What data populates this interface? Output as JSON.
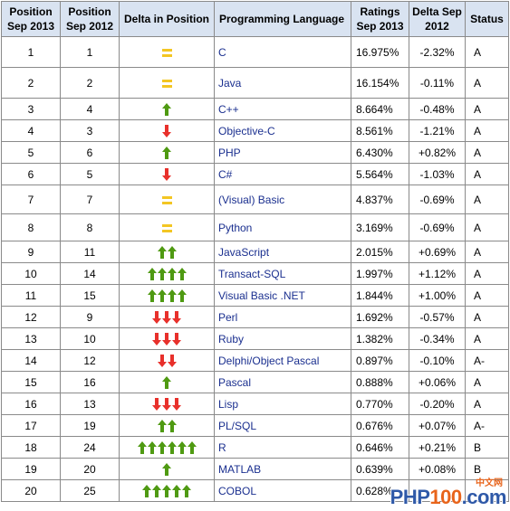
{
  "headers": {
    "pos2013": "Position Sep 2013",
    "pos2012": "Position Sep 2012",
    "delta_pos": "Delta in Position",
    "language": "Programming Language",
    "ratings": "Ratings Sep 2013",
    "delta": "Delta Sep 2012",
    "status": "Status"
  },
  "colors": {
    "up": "#4f9a12",
    "down": "#e8302b",
    "equal": "#f3c623",
    "link": "#1a2f8f",
    "header_bg": "#d9e3f1"
  },
  "rows": [
    {
      "p13": "1",
      "p12": "1",
      "trend": "equal",
      "count": 1,
      "lang": "C",
      "rating": "16.975%",
      "delta": "-2.32%",
      "status": "A"
    },
    {
      "p13": "2",
      "p12": "2",
      "trend": "equal",
      "count": 1,
      "lang": "Java",
      "rating": "16.154%",
      "delta": "-0.11%",
      "status": "A"
    },
    {
      "p13": "3",
      "p12": "4",
      "trend": "up",
      "count": 1,
      "lang": "C++",
      "rating": "8.664%",
      "delta": "-0.48%",
      "status": "A"
    },
    {
      "p13": "4",
      "p12": "3",
      "trend": "down",
      "count": 1,
      "lang": "Objective-C",
      "rating": "8.561%",
      "delta": "-1.21%",
      "status": "A"
    },
    {
      "p13": "5",
      "p12": "6",
      "trend": "up",
      "count": 1,
      "lang": "PHP",
      "rating": "6.430%",
      "delta": "+0.82%",
      "status": "A"
    },
    {
      "p13": "6",
      "p12": "5",
      "trend": "down",
      "count": 1,
      "lang": "C#",
      "rating": "5.564%",
      "delta": "-1.03%",
      "status": "A"
    },
    {
      "p13": "7",
      "p12": "7",
      "trend": "equal",
      "count": 1,
      "lang": "(Visual) Basic",
      "rating": "4.837%",
      "delta": "-0.69%",
      "status": "A"
    },
    {
      "p13": "8",
      "p12": "8",
      "trend": "equal",
      "count": 1,
      "lang": "Python",
      "rating": "3.169%",
      "delta": "-0.69%",
      "status": "A"
    },
    {
      "p13": "9",
      "p12": "11",
      "trend": "up",
      "count": 2,
      "lang": "JavaScript",
      "rating": "2.015%",
      "delta": "+0.69%",
      "status": "A"
    },
    {
      "p13": "10",
      "p12": "14",
      "trend": "up",
      "count": 4,
      "lang": "Transact-SQL",
      "rating": "1.997%",
      "delta": "+1.12%",
      "status": "A"
    },
    {
      "p13": "11",
      "p12": "15",
      "trend": "up",
      "count": 4,
      "lang": "Visual Basic .NET",
      "rating": "1.844%",
      "delta": "+1.00%",
      "status": "A"
    },
    {
      "p13": "12",
      "p12": "9",
      "trend": "down",
      "count": 3,
      "lang": "Perl",
      "rating": "1.692%",
      "delta": "-0.57%",
      "status": "A"
    },
    {
      "p13": "13",
      "p12": "10",
      "trend": "down",
      "count": 3,
      "lang": "Ruby",
      "rating": "1.382%",
      "delta": "-0.34%",
      "status": "A"
    },
    {
      "p13": "14",
      "p12": "12",
      "trend": "down",
      "count": 2,
      "lang": "Delphi/Object Pascal",
      "rating": "0.897%",
      "delta": "-0.10%",
      "status": "A-"
    },
    {
      "p13": "15",
      "p12": "16",
      "trend": "up",
      "count": 1,
      "lang": "Pascal",
      "rating": "0.888%",
      "delta": "+0.06%",
      "status": "A"
    },
    {
      "p13": "16",
      "p12": "13",
      "trend": "down",
      "count": 3,
      "lang": "Lisp",
      "rating": "0.770%",
      "delta": "-0.20%",
      "status": "A"
    },
    {
      "p13": "17",
      "p12": "19",
      "trend": "up",
      "count": 2,
      "lang": "PL/SQL",
      "rating": "0.676%",
      "delta": "+0.07%",
      "status": "A-"
    },
    {
      "p13": "18",
      "p12": "24",
      "trend": "up",
      "count": 6,
      "lang": "R",
      "rating": "0.646%",
      "delta": "+0.21%",
      "status": "B"
    },
    {
      "p13": "19",
      "p12": "20",
      "trend": "up",
      "count": 1,
      "lang": "MATLAB",
      "rating": "0.639%",
      "delta": "+0.08%",
      "status": "B"
    },
    {
      "p13": "20",
      "p12": "25",
      "trend": "up",
      "count": 5,
      "lang": "COBOL",
      "rating": "0.628%",
      "delta": "",
      "status": ""
    }
  ],
  "watermark": {
    "brand_a": "PHP",
    "brand_b": "100",
    "brand_c": ".com",
    "cn": "中文网"
  }
}
